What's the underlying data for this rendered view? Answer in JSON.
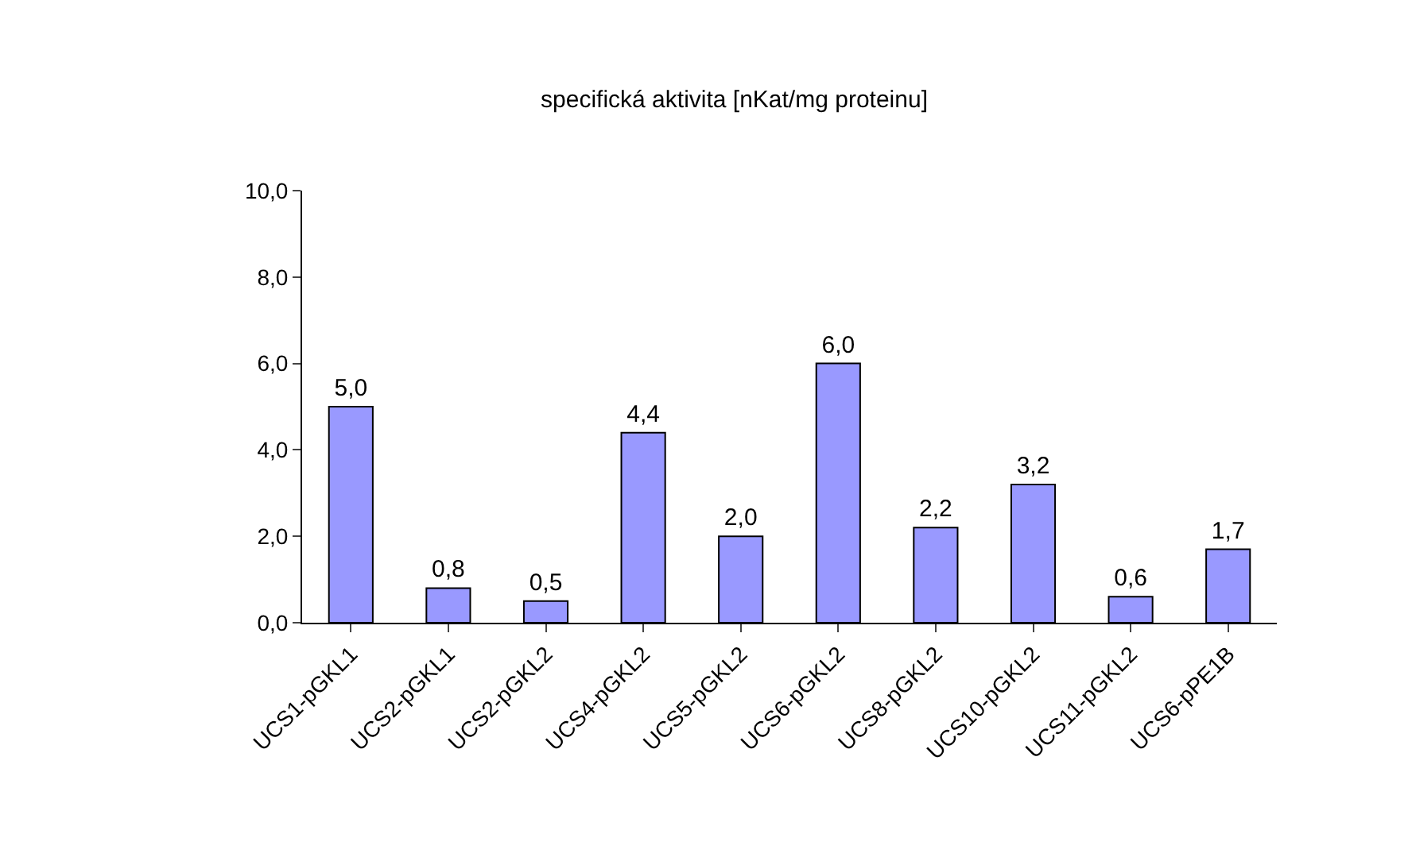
{
  "chart_data": {
    "type": "bar",
    "title": "specifická aktivita [nKat/mg proteinu]",
    "categories": [
      "UCS1-pGKL1",
      "UCS2-pGKL1",
      "UCS2-pGKL2",
      "UCS4-pGKL2",
      "UCS5-pGKL2",
      "UCS6-pGKL2",
      "UCS8-pGKL2",
      "UCS10-pGKL2",
      "UCS11-pGKL2",
      "UCS6-pPE1B"
    ],
    "values": [
      5.0,
      0.8,
      0.5,
      4.4,
      2.0,
      6.0,
      2.2,
      3.2,
      0.6,
      1.7
    ],
    "value_labels": [
      "5,0",
      "0,8",
      "0,5",
      "4,4",
      "2,0",
      "6,0",
      "2,2",
      "3,2",
      "0,6",
      "1,7"
    ],
    "color": "#9999ff",
    "ylim": [
      0,
      10
    ],
    "yticks": [
      {
        "value": 0,
        "label": "0,0"
      },
      {
        "value": 2,
        "label": "2,0"
      },
      {
        "value": 4,
        "label": "4,0"
      },
      {
        "value": 6,
        "label": "6,0"
      },
      {
        "value": 8,
        "label": "8,0"
      },
      {
        "value": 10,
        "label": "10,0"
      }
    ],
    "grid": false,
    "legend": false
  }
}
